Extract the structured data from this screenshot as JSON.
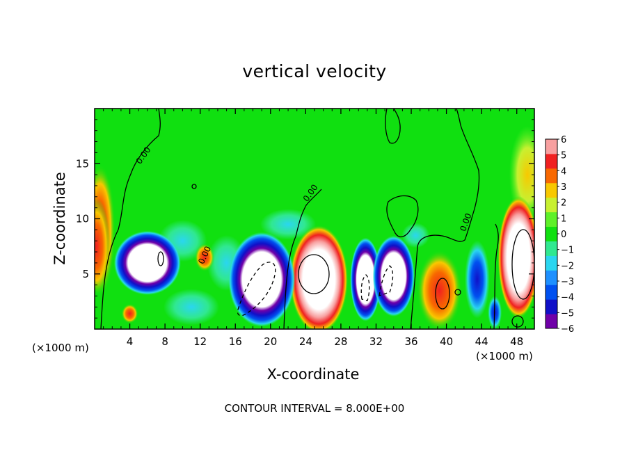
{
  "chart_data": {
    "type": "heatmap",
    "title": "vertical velocity",
    "xlabel": "X-coordinate",
    "ylabel": "Z-coordinate",
    "x_unit_left": "(×1000 m)",
    "x_unit_right": "(×1000 m)",
    "xlim": [
      0,
      50
    ],
    "ylim": [
      0,
      20
    ],
    "x_ticks": [
      4,
      8,
      12,
      16,
      20,
      24,
      28,
      32,
      36,
      40,
      44,
      48
    ],
    "y_ticks": [
      5,
      10,
      15
    ],
    "colorbar": {
      "levels": [
        -6,
        -5,
        -4,
        -3,
        -2,
        -1,
        0,
        1,
        2,
        3,
        4,
        5,
        6
      ],
      "colors": [
        "#7000a8",
        "#1010c8",
        "#0050f0",
        "#1e90ff",
        "#2ad6f0",
        "#30e890",
        "#10e010",
        "#5ef028",
        "#c8f030",
        "#f8c800",
        "#f86800",
        "#f02020",
        "#f8a0a0"
      ]
    },
    "contour_interval_text": "CONTOUR INTERVAL = 8.000E+00",
    "contour_labels": [
      "0.00",
      "0.00",
      "0.00",
      "0.00"
    ],
    "features": [
      {
        "kind": "updraft-core",
        "x": 25.5,
        "z": 4.5,
        "w": 8
      },
      {
        "kind": "updraft-core",
        "x": 48.2,
        "z": 6.5,
        "w": 7
      },
      {
        "kind": "updraft",
        "x": 0.2,
        "z": 7.5,
        "w": 5
      },
      {
        "kind": "updraft",
        "x": 39.2,
        "z": 3.5,
        "w": 5
      },
      {
        "kind": "updraft",
        "x": 12.5,
        "z": 6.5,
        "w": 3
      },
      {
        "kind": "downdraft-core",
        "x": 6.0,
        "z": 6.0,
        "w": -7
      },
      {
        "kind": "downdraft-core",
        "x": 19.0,
        "z": 4.5,
        "w": -8
      },
      {
        "kind": "downdraft-core",
        "x": 30.8,
        "z": 4.5,
        "w": -7
      },
      {
        "kind": "downdraft-core",
        "x": 34.0,
        "z": 4.8,
        "w": -7
      },
      {
        "kind": "downdraft",
        "x": 43.5,
        "z": 4.5,
        "w": -4
      },
      {
        "kind": "downdraft",
        "x": 45.5,
        "z": 1.5,
        "w": -3
      }
    ]
  }
}
